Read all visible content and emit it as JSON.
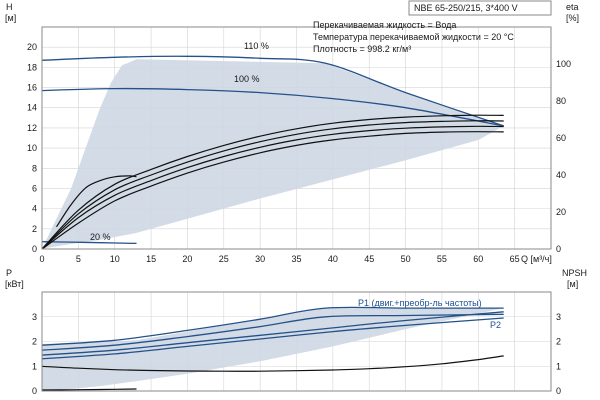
{
  "colors": {
    "area_fill": "#cdd7e3",
    "area_fill_light": "#e6ecf3",
    "curve_blue": "#24518a",
    "curve_black": "#111111",
    "grid": "#d4d4d4",
    "frame": "#8a8a8a"
  },
  "model_label": "NBE 65-250/215, 3*400 V",
  "info_lines": [
    "Перекачиваемая жидкость = Вода",
    "Температура перекачиваемой жидкости = 20 °C",
    "Плотность = 998.2 кг/м³"
  ],
  "chart_data": [
    {
      "type": "line",
      "name": "head",
      "y_label": [
        "H",
        "[м]"
      ],
      "y2_label": [
        "eta",
        "[%]"
      ],
      "x_label": "Q [м³/ч]",
      "xlim": [
        0,
        70
      ],
      "ylim": [
        0,
        22
      ],
      "y2lim": [
        0,
        120
      ],
      "x_ticks": [
        0,
        5,
        10,
        15,
        20,
        25,
        30,
        35,
        40,
        45,
        50,
        55,
        60,
        65
      ],
      "y_ticks": [
        0,
        2,
        4,
        6,
        8,
        10,
        12,
        14,
        16,
        18,
        20
      ],
      "y2_ticks": [
        0,
        20,
        40,
        60,
        80,
        100
      ],
      "grid": true,
      "series": [
        {
          "name": "110 %",
          "axis": "y",
          "color": "curve_blue",
          "x": [
            0,
            10,
            20,
            30,
            39,
            50,
            63.5
          ],
          "y": [
            18.7,
            19.0,
            19.1,
            18.9,
            18.4,
            15.5,
            12.2
          ]
        },
        {
          "name": "100 %",
          "axis": "y",
          "color": "curve_blue",
          "x": [
            0,
            10,
            20,
            30,
            40,
            50,
            63.5
          ],
          "y": [
            15.7,
            15.9,
            15.8,
            15.5,
            14.9,
            14.0,
            12.2
          ]
        },
        {
          "name": "20 %",
          "axis": "y",
          "color": "curve_blue",
          "x": [
            0,
            4,
            8,
            13
          ],
          "y": [
            0.72,
            0.68,
            0.62,
            0.55
          ]
        },
        {
          "axis": "y2",
          "color": "curve_black",
          "x": [
            0,
            5,
            10,
            15,
            20,
            25,
            30,
            35,
            40,
            45,
            50,
            55,
            60,
            63.5
          ],
          "y": [
            0,
            14,
            26,
            34,
            41,
            47,
            52,
            56,
            59,
            61,
            62.5,
            63.2,
            63.4,
            63.3
          ]
        },
        {
          "axis": "y2",
          "color": "curve_black",
          "x": [
            0,
            5,
            10,
            15,
            20,
            25,
            30,
            35,
            40,
            45,
            50,
            55,
            60,
            63.5
          ],
          "y": [
            0,
            17,
            29,
            37,
            44,
            50,
            55,
            59,
            62,
            64,
            65.3,
            66,
            66.3,
            66.2
          ]
        },
        {
          "axis": "y2",
          "color": "curve_black",
          "x": [
            0,
            5,
            10,
            15,
            20,
            25,
            30,
            35,
            40,
            45,
            50,
            55,
            60,
            63.5
          ],
          "y": [
            0,
            19,
            32,
            40,
            47,
            53,
            58,
            62,
            65,
            67,
            68.3,
            69,
            69.3,
            69.2
          ]
        },
        {
          "axis": "y2",
          "color": "curve_black",
          "x": [
            0,
            5,
            10,
            15,
            20,
            25,
            30,
            35,
            40,
            45,
            50,
            55,
            60,
            63.5
          ],
          "y": [
            0,
            21,
            35,
            43,
            50,
            56,
            61,
            65,
            68,
            70,
            71.3,
            72,
            72.3,
            72.2
          ]
        },
        {
          "axis": "y2",
          "color": "curve_black",
          "x": [
            2,
            4,
            6,
            8,
            10,
            12,
            13
          ],
          "y": [
            12,
            24,
            33,
            37,
            39,
            39.5,
            39
          ]
        }
      ],
      "operating_area": {
        "x": [
          0,
          2,
          4,
          6,
          8,
          9.5,
          11,
          13,
          39,
          50,
          63.5,
          60,
          50,
          40,
          30,
          20,
          13,
          8,
          4,
          1,
          0
        ],
        "y": [
          0,
          3,
          6,
          10,
          14,
          16.5,
          18.2,
          18.8,
          18.4,
          15.5,
          12.2,
          10.8,
          8.8,
          6.9,
          5.0,
          3.0,
          1.6,
          0.9,
          0.5,
          0.15,
          0
        ]
      }
    },
    {
      "type": "line",
      "name": "power",
      "y_label": [
        "P",
        "[кВт]"
      ],
      "y2_label": [
        "NPSH",
        "[м]"
      ],
      "xlim": [
        0,
        70
      ],
      "ylim": [
        0,
        4
      ],
      "y2lim": [
        0,
        4
      ],
      "y_ticks": [
        0,
        1,
        2,
        3
      ],
      "y2_ticks": [
        0,
        1,
        2,
        3
      ],
      "grid": true,
      "annotations": [
        "P1 (двиг.+преобр-ль частоты)",
        "P2"
      ],
      "series": [
        {
          "axis": "y",
          "color": "curve_blue",
          "x": [
            0,
            10,
            20,
            30,
            39,
            50,
            63.5
          ],
          "y": [
            1.85,
            2.05,
            2.45,
            2.9,
            3.35,
            3.35,
            3.35
          ]
        },
        {
          "axis": "y",
          "color": "curve_blue",
          "x": [
            0,
            10,
            20,
            30,
            39,
            50,
            63.5
          ],
          "y": [
            1.65,
            1.85,
            2.2,
            2.6,
            3.0,
            3.05,
            3.1
          ]
        },
        {
          "axis": "y",
          "color": "curve_blue",
          "x": [
            0,
            10,
            20,
            30,
            40,
            50,
            63.5
          ],
          "y": [
            1.45,
            1.65,
            1.95,
            2.25,
            2.55,
            2.85,
            3.2
          ]
        },
        {
          "axis": "y",
          "color": "curve_blue",
          "x": [
            0,
            10,
            20,
            30,
            40,
            50,
            63.5
          ],
          "y": [
            1.3,
            1.5,
            1.8,
            2.1,
            2.4,
            2.65,
            2.95
          ]
        },
        {
          "axis": "y2",
          "color": "curve_black",
          "x": [
            0,
            5,
            10,
            15,
            20,
            25,
            30,
            35,
            40,
            45,
            50,
            55,
            60,
            63.5
          ],
          "y": [
            1.0,
            0.92,
            0.86,
            0.83,
            0.81,
            0.8,
            0.8,
            0.82,
            0.85,
            0.9,
            0.98,
            1.1,
            1.27,
            1.42
          ]
        },
        {
          "axis": "y",
          "color": "curve_black",
          "x": [
            0,
            4,
            8,
            13
          ],
          "y": [
            0.04,
            0.05,
            0.06,
            0.08
          ]
        }
      ],
      "operating_area": {
        "x": [
          0,
          13,
          39,
          50,
          63.5,
          50,
          40,
          30,
          20,
          13,
          8,
          4,
          1,
          0
        ],
        "y": [
          1.9,
          2.05,
          3.35,
          3.35,
          3.35,
          2.5,
          1.8,
          1.2,
          0.7,
          0.4,
          0.2,
          0.08,
          0.02,
          0
        ]
      }
    }
  ]
}
